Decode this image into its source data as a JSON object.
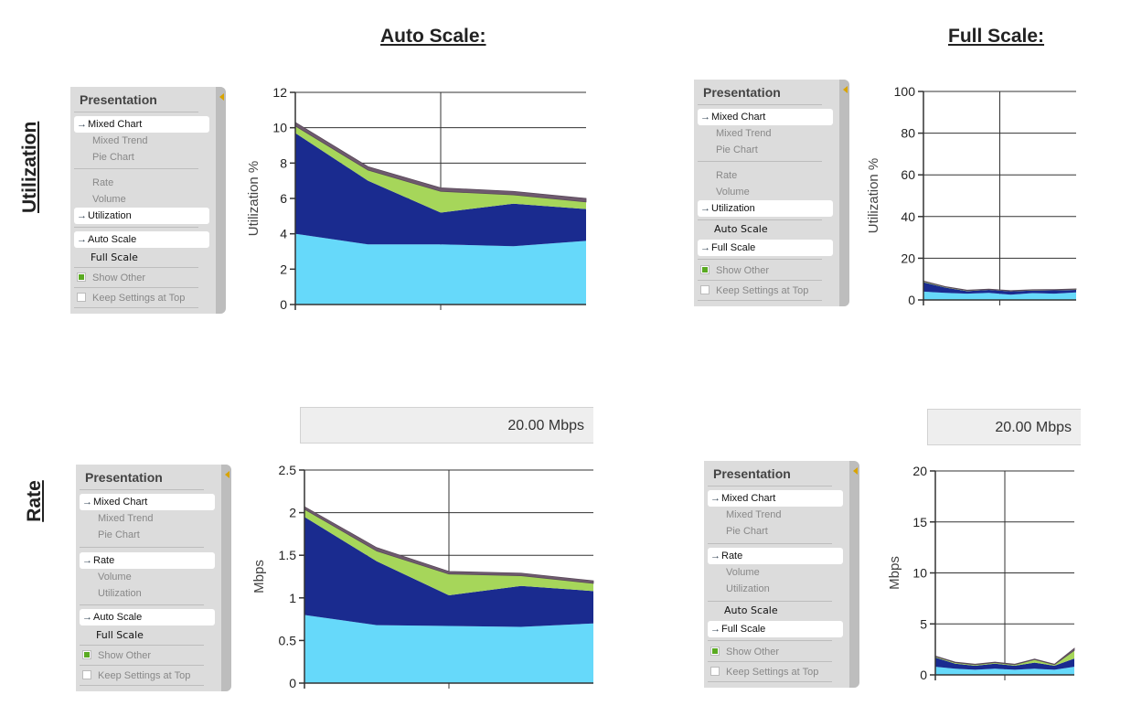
{
  "headings": {
    "auto": "Auto Scale:",
    "full": "Full Scale:"
  },
  "row_labels": {
    "utilization": "Utilization",
    "rate": "Rate"
  },
  "panel": {
    "title": "Presentation",
    "chart_types": [
      "Mixed Chart",
      "Mixed Trend",
      "Pie Chart"
    ],
    "metrics": [
      "Rate",
      "Volume",
      "Utilization"
    ],
    "scales": [
      "Auto Scale",
      "Full Scale"
    ],
    "show_other": "Show Other",
    "keep_settings": "Keep Settings at Top"
  },
  "rate_bar_label": "20.00 Mbps",
  "colors": {
    "light_blue": "#66d9fa",
    "dark_blue": "#1a2b8f",
    "green": "#a6d65a",
    "top": "#6e5a6e"
  },
  "chart_data": [
    {
      "type": "area",
      "id": "util-auto",
      "ylabel": "Utilization %",
      "ylim": [
        0,
        12
      ],
      "yticks": [
        0,
        2,
        4,
        6,
        8,
        10,
        12
      ],
      "x": [
        0,
        1,
        2,
        3,
        4
      ],
      "series": [
        {
          "values": [
            4.0,
            3.4,
            3.4,
            3.3,
            3.6
          ]
        },
        {
          "values": [
            5.7,
            3.6,
            1.8,
            2.4,
            1.8
          ]
        },
        {
          "values": [
            0.4,
            0.6,
            1.2,
            0.5,
            0.4
          ]
        },
        {
          "values": [
            0.2,
            0.2,
            0.2,
            0.2,
            0.2
          ]
        }
      ]
    },
    {
      "type": "area",
      "id": "util-full",
      "ylabel": "Utilization %",
      "ylim": [
        0,
        100
      ],
      "yticks": [
        0,
        20,
        40,
        60,
        80,
        100
      ],
      "x": [
        0,
        1,
        2,
        3,
        4,
        5,
        6,
        7
      ],
      "series": [
        {
          "values": [
            4.0,
            3.4,
            3.0,
            3.4,
            2.5,
            3.3,
            3.0,
            3.6
          ]
        },
        {
          "values": [
            4.5,
            2.5,
            1.2,
            1.4,
            1.6,
            1.2,
            1.6,
            1.2
          ]
        },
        {
          "values": [
            0.4,
            0.3,
            0.3,
            0.2,
            0.2,
            0.2,
            0.2,
            0.3
          ]
        },
        {
          "values": [
            0.2,
            0.2,
            0.2,
            0.2,
            0.2,
            0.2,
            0.2,
            0.2
          ]
        }
      ]
    },
    {
      "type": "area",
      "id": "rate-auto",
      "ylabel": "Mbps",
      "ylim": [
        0,
        2.5
      ],
      "yticks": [
        0,
        0.5,
        1,
        1.5,
        2,
        2.5
      ],
      "x": [
        0,
        1,
        2,
        3,
        4
      ],
      "series": [
        {
          "values": [
            0.8,
            0.68,
            0.67,
            0.66,
            0.7
          ]
        },
        {
          "values": [
            1.15,
            0.75,
            0.36,
            0.48,
            0.38
          ]
        },
        {
          "values": [
            0.09,
            0.12,
            0.25,
            0.12,
            0.09
          ]
        },
        {
          "values": [
            0.03,
            0.04,
            0.03,
            0.03,
            0.03
          ]
        }
      ]
    },
    {
      "type": "area",
      "id": "rate-full",
      "ylabel": "Mbps",
      "ylim": [
        0,
        20
      ],
      "yticks": [
        0,
        5,
        10,
        15,
        20
      ],
      "x": [
        0,
        1,
        2,
        3,
        4,
        5,
        6,
        7
      ],
      "series": [
        {
          "values": [
            0.8,
            0.6,
            0.5,
            0.6,
            0.5,
            0.6,
            0.5,
            0.8
          ]
        },
        {
          "values": [
            0.9,
            0.5,
            0.4,
            0.5,
            0.4,
            0.6,
            0.4,
            0.8
          ]
        },
        {
          "values": [
            0.1,
            0.1,
            0.1,
            0.1,
            0.1,
            0.3,
            0.1,
            0.8
          ]
        },
        {
          "values": [
            0.05,
            0.05,
            0.05,
            0.05,
            0.05,
            0.05,
            0.05,
            0.2
          ]
        }
      ]
    }
  ]
}
